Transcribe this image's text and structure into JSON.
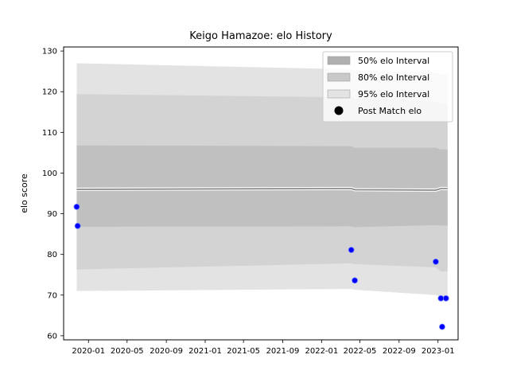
{
  "chart_data": {
    "type": "line",
    "title": "Keigo Hamazoe: elo History",
    "xlabel": "",
    "ylabel": "elo score",
    "x_axis": {
      "ticks": [
        "2020-01-01",
        "2020-05-01",
        "2020-09-01",
        "2021-01-01",
        "2021-05-01",
        "2021-09-01",
        "2022-01-01",
        "2022-05-01",
        "2022-09-01",
        "2023-01-01"
      ],
      "tick_labels": [
        "2020-01",
        "2020-05",
        "2020-09",
        "2021-01",
        "2021-05",
        "2021-09",
        "2022-01",
        "2022-05",
        "2022-09",
        "2023-01"
      ],
      "xlim": [
        "2019-10-15",
        "2023-03-05"
      ]
    },
    "y_axis": {
      "ylim": [
        59,
        131
      ],
      "ticks": [
        60,
        70,
        80,
        90,
        100,
        110,
        120,
        130
      ]
    },
    "grid": false,
    "legend": {
      "placement": "top-right",
      "entries": [
        {
          "label": "50% elo Interval",
          "color": "#b0b0b0",
          "kind": "patch"
        },
        {
          "label": "80% elo Interval",
          "color": "#c9c9c9",
          "kind": "patch"
        },
        {
          "label": "95% elo Interval",
          "color": "#e3e3e3",
          "kind": "patch"
        },
        {
          "label": "Post Match elo",
          "color": "#000000",
          "kind": "marker"
        }
      ]
    },
    "series": [
      {
        "name": "95% elo Interval",
        "kind": "band",
        "color": "#e3e3e3",
        "x": [
          "2019-11-25",
          "2022-04-04",
          "2022-04-15",
          "2022-12-25",
          "2023-01-10",
          "2023-01-31"
        ],
        "lower": [
          71.0,
          71.5,
          71.3,
          70.0,
          69.6,
          69.5
        ],
        "upper": [
          127.0,
          125.5,
          125.2,
          124.7,
          124.4,
          124.4
        ]
      },
      {
        "name": "80% elo Interval",
        "kind": "band",
        "color": "#d3d3d3",
        "x": [
          "2019-11-25",
          "2022-04-04",
          "2022-04-15",
          "2022-12-25",
          "2023-01-10",
          "2023-01-31"
        ],
        "lower": [
          76.3,
          77.8,
          77.6,
          76.8,
          75.8,
          75.8
        ],
        "upper": [
          119.4,
          118.6,
          118.4,
          117.6,
          117.1,
          117.1
        ]
      },
      {
        "name": "50% elo Interval",
        "kind": "band",
        "color": "#c0c0c0",
        "x": [
          "2019-11-25",
          "2022-04-04",
          "2022-04-15",
          "2022-12-25",
          "2023-01-10",
          "2023-01-31"
        ],
        "lower": [
          86.8,
          86.9,
          86.7,
          87.2,
          87.1,
          87.1
        ],
        "upper": [
          106.8,
          106.6,
          106.2,
          106.2,
          105.8,
          105.8
        ]
      },
      {
        "name": "",
        "kind": "line",
        "color": "#808080",
        "x": [
          "2019-11-25",
          "2022-04-04",
          "2022-04-15",
          "2022-12-25",
          "2023-01-10",
          "2023-01-31"
        ],
        "y": [
          96.0,
          96.2,
          95.9,
          95.8,
          96.2,
          96.2
        ]
      },
      {
        "name": "Post Match elo",
        "kind": "scatter",
        "color": "#0000ff",
        "x": [
          "2019-11-25",
          "2019-11-28",
          "2022-04-04",
          "2022-04-15",
          "2022-12-25",
          "2023-01-10",
          "2023-01-14",
          "2023-01-26"
        ],
        "y": [
          91.7,
          87.0,
          81.1,
          73.6,
          78.2,
          69.2,
          62.2,
          69.2
        ]
      }
    ]
  }
}
